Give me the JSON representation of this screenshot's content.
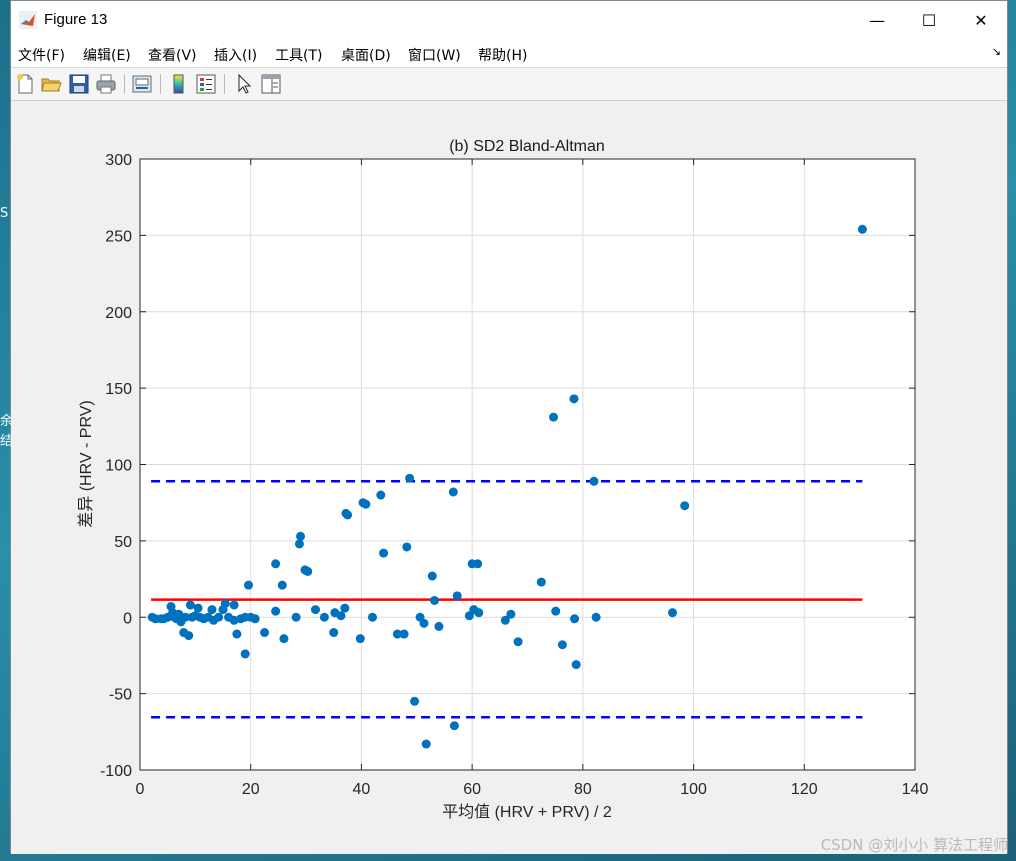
{
  "window": {
    "title": "Figure 13",
    "minimize": "—",
    "maximize": "☐",
    "close": "✕"
  },
  "menu": [
    "文件(F)",
    "编辑(E)",
    "查看(V)",
    "插入(I)",
    "工具(T)",
    "桌面(D)",
    "窗口(W)",
    "帮助(H)"
  ],
  "menu_arrow": "↘",
  "toolbar": [
    {
      "name": "new-figure-icon"
    },
    {
      "name": "open-file-icon"
    },
    {
      "name": "save-icon"
    },
    {
      "name": "print-icon"
    },
    {
      "name": "print-preview-icon"
    },
    {
      "name": "colorbar-icon"
    },
    {
      "name": "legend-icon"
    },
    {
      "name": "pointer-icon"
    },
    {
      "name": "property-editor-icon"
    }
  ],
  "edge_fragments": [
    "S",
    "余",
    "结"
  ],
  "watermark": "CSDN @刘小小 算法工程师",
  "chart_data": {
    "type": "scatter",
    "title": "(b) SD2 Bland-Altman",
    "xlabel": "平均值 (HRV + PRV) / 2",
    "ylabel": "差异 (HRV - PRV)",
    "xlim": [
      0,
      140
    ],
    "ylim": [
      -100,
      300
    ],
    "xticks": [
      0,
      20,
      40,
      60,
      80,
      100,
      120,
      140
    ],
    "yticks": [
      -100,
      -50,
      0,
      50,
      100,
      150,
      200,
      250,
      300
    ],
    "grid": true,
    "point_color": "#0072BD",
    "mean_line": {
      "y": 11.5,
      "x_range": [
        2,
        130.5
      ],
      "color": "#ff0000"
    },
    "limits_of_agreement": [
      {
        "y": 89,
        "x_range": [
          2,
          130.5
        ],
        "color": "#0000ff"
      },
      {
        "y": -65.5,
        "x_range": [
          2,
          130.5
        ],
        "color": "#0000ff"
      }
    ],
    "points": [
      [
        2.2,
        0
      ],
      [
        2.8,
        -1
      ],
      [
        3.8,
        -1
      ],
      [
        4.3,
        -1
      ],
      [
        5,
        0
      ],
      [
        5.6,
        7
      ],
      [
        5.9,
        3
      ],
      [
        6.2,
        0
      ],
      [
        6.6,
        -1
      ],
      [
        7,
        2
      ],
      [
        7.4,
        -3
      ],
      [
        7.9,
        -10
      ],
      [
        8.2,
        0
      ],
      [
        8.8,
        -12
      ],
      [
        9.1,
        8
      ],
      [
        9.4,
        0
      ],
      [
        10,
        1
      ],
      [
        10.5,
        6
      ],
      [
        10.8,
        0
      ],
      [
        11.5,
        -1
      ],
      [
        12.3,
        0
      ],
      [
        13,
        5
      ],
      [
        13.3,
        -2
      ],
      [
        14.2,
        0
      ],
      [
        15,
        5
      ],
      [
        15.4,
        9
      ],
      [
        16,
        0
      ],
      [
        17,
        8
      ],
      [
        17,
        -2
      ],
      [
        17.5,
        -11
      ],
      [
        18.2,
        -1
      ],
      [
        19,
        -24
      ],
      [
        19,
        0
      ],
      [
        19.6,
        21
      ],
      [
        20,
        0
      ],
      [
        20.8,
        -1
      ],
      [
        22.5,
        -10
      ],
      [
        24.5,
        4
      ],
      [
        24.5,
        35
      ],
      [
        25.7,
        21
      ],
      [
        26,
        -14
      ],
      [
        28.2,
        0
      ],
      [
        28.8,
        48
      ],
      [
        29,
        53
      ],
      [
        29.8,
        31
      ],
      [
        30.3,
        30
      ],
      [
        31.7,
        5
      ],
      [
        33.3,
        0
      ],
      [
        35,
        -10
      ],
      [
        35.2,
        3
      ],
      [
        36.3,
        1
      ],
      [
        37,
        6
      ],
      [
        37.2,
        68
      ],
      [
        37.5,
        67
      ],
      [
        39.8,
        -14
      ],
      [
        40.3,
        75
      ],
      [
        40.8,
        74
      ],
      [
        42,
        0
      ],
      [
        43.5,
        80
      ],
      [
        44,
        42
      ],
      [
        46.5,
        -11
      ],
      [
        47.7,
        -11
      ],
      [
        48.2,
        46
      ],
      [
        48.7,
        91
      ],
      [
        49.6,
        -55
      ],
      [
        50.6,
        0
      ],
      [
        51.3,
        -4
      ],
      [
        51.7,
        -83
      ],
      [
        52.8,
        27
      ],
      [
        53.2,
        11
      ],
      [
        54,
        -6
      ],
      [
        56.6,
        82
      ],
      [
        56.8,
        -71
      ],
      [
        57.3,
        14
      ],
      [
        59.5,
        1
      ],
      [
        60,
        35
      ],
      [
        60.3,
        5
      ],
      [
        61,
        35
      ],
      [
        61.2,
        3
      ],
      [
        66,
        -2
      ],
      [
        67,
        2
      ],
      [
        68.3,
        -16
      ],
      [
        72.5,
        23
      ],
      [
        74.7,
        131
      ],
      [
        75.1,
        4
      ],
      [
        76.3,
        -18
      ],
      [
        78.4,
        143
      ],
      [
        78.5,
        -1
      ],
      [
        78.8,
        -31
      ],
      [
        82,
        89
      ],
      [
        82.4,
        0
      ],
      [
        96.2,
        3
      ],
      [
        98.4,
        73
      ],
      [
        130.5,
        254
      ]
    ]
  }
}
